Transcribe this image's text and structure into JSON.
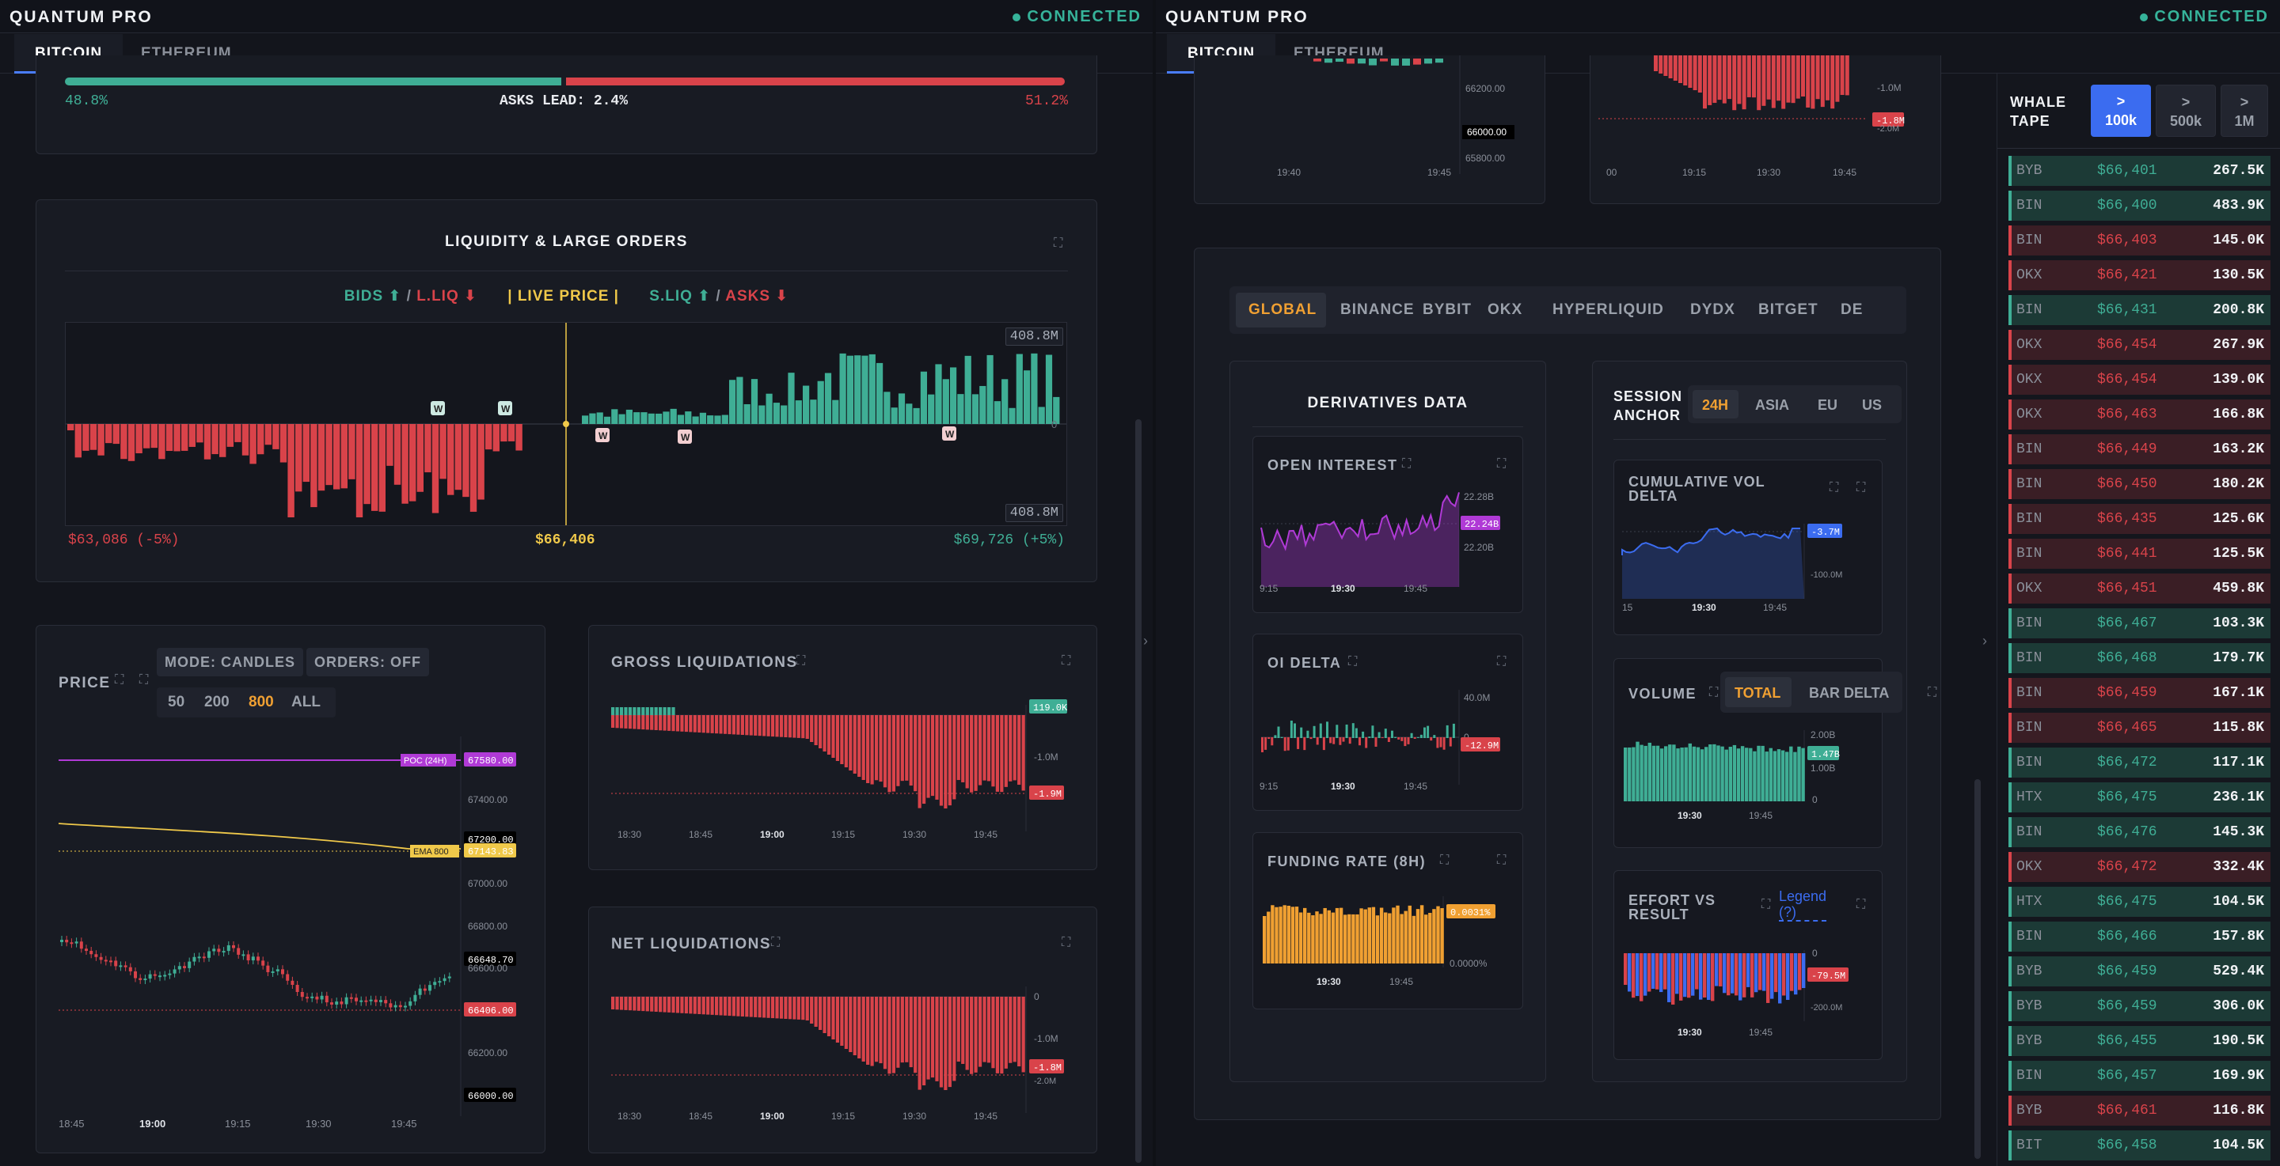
{
  "left": {
    "brand": "QUANTUM PRO",
    "status": "CONNECTED",
    "tabs": [
      "BITCOIN",
      "ETHEREUM"
    ],
    "orderbook": {
      "bids_pct": "48.8%",
      "asks_pct": "51.2%",
      "lead": "ASKS LEAD: 2.4%"
    },
    "liquidity": {
      "title": "LIQUIDITY & LARGE ORDERS",
      "legend_bids": "BIDS ⬆",
      "legend_sep1": "/",
      "legend_lliq": "L.LIQ ⬇",
      "legend_live": "| LIVE PRICE |",
      "legend_sliq": "S.LIQ ⬆",
      "legend_sep2": "/",
      "legend_asks": "ASKS ⬇",
      "max_top": "408.8M",
      "max_bottom": "408.8M",
      "zero": "0",
      "whale_mark": "W",
      "low": "$63,086 (-5%)",
      "mid": "$66,406",
      "high": "$69,726 (+5%)"
    },
    "price": {
      "title": "PRICE",
      "mode": "MODE: CANDLES",
      "orders": "ORDERS: OFF",
      "lookbacks": [
        "50",
        "200",
        "800",
        "ALL"
      ],
      "active_lookback": "800",
      "poc_label": "POC (24H)",
      "poc_value": "67580.00",
      "ema_label": "EMA 800",
      "ema_value": "67143.83",
      "y_ticks": [
        "67400.00",
        "67200.00",
        "67000.00",
        "66800.00",
        "66648.70",
        "66600.00",
        "66406.00",
        "66200.00",
        "66000.00"
      ],
      "x_ticks": [
        "18:45",
        "19:00",
        "19:15",
        "19:30",
        "19:45"
      ]
    },
    "gross": {
      "title": "GROSS LIQUIDATIONS",
      "top_tag": "119.0K",
      "mid_tick": "-1.0M",
      "bottom_tag": "-1.9M",
      "x_ticks": [
        "18:30",
        "18:45",
        "19:00",
        "19:15",
        "19:30",
        "19:45"
      ]
    },
    "net": {
      "title": "NET LIQUIDATIONS",
      "zero": "0",
      "mid_tick": "-1.0M",
      "bottom_tag": "-1.8M",
      "extra_tick": "-2.0M",
      "x_ticks": [
        "18:30",
        "18:45",
        "19:00",
        "19:15",
        "19:30",
        "19:45"
      ]
    }
  },
  "right": {
    "brand": "QUANTUM PRO",
    "status": "CONNECTED",
    "tabs": [
      "BITCOIN",
      "ETHEREUM"
    ],
    "top_left_ticks": [
      "66200.00",
      "66000.00",
      "65800.00"
    ],
    "top_left_x": [
      "19:40",
      "19:45"
    ],
    "top_right_ticks": [
      "-1.0M",
      "-1.8M",
      "-2.0M"
    ],
    "top_right_x": [
      "00",
      "19:15",
      "19:30",
      "19:45"
    ],
    "exchanges": [
      "GLOBAL",
      "BINANCE",
      "BYBIT",
      "OKX",
      "HYPERLIQUID",
      "DYDX",
      "BITGET",
      "DE"
    ],
    "derivatives": {
      "title": "DERIVATIVES DATA",
      "oi": {
        "title": "OPEN INTEREST",
        "ticks": [
          "22.28B",
          "22.24B",
          "22.20B"
        ],
        "x": [
          "9:15",
          "19:30",
          "19:45"
        ]
      },
      "oi_delta": {
        "title": "OI DELTA",
        "ticks": [
          "40.0M",
          "0",
          "-12.9M"
        ],
        "x": [
          "9:15",
          "19:30",
          "19:45"
        ]
      },
      "funding": {
        "title": "FUNDING RATE (8H)",
        "ticks": [
          "0.0031%",
          "0.0000%"
        ],
        "x": [
          "19:30",
          "19:45"
        ]
      }
    },
    "session": {
      "title_line1": "SESSION",
      "title_line2": "ANCHOR",
      "options": [
        "24H",
        "ASIA",
        "EU",
        "US"
      ],
      "cvd": {
        "title_line1": "CUMULATIVE VOL",
        "title_line2": "DELTA",
        "ticks": [
          "-3.7M",
          "-100.0M"
        ],
        "x": [
          "15",
          "19:30",
          "19:45"
        ]
      },
      "volume": {
        "title": "VOLUME",
        "modes": [
          "TOTAL",
          "BAR DELTA"
        ],
        "ticks": [
          "2.00B",
          "1.47B",
          "1.00B",
          "0"
        ],
        "x": [
          "19:30",
          "19:45"
        ]
      },
      "effort": {
        "title_line1": "EFFORT VS",
        "title_line2": "RESULT",
        "legend": "Legend",
        "legend_q": "(?)",
        "ticks": [
          "0",
          "-79.5M",
          "-200.0M"
        ],
        "x": [
          "19:30",
          "19:45"
        ]
      }
    },
    "whale": {
      "title_line1": "WHALE",
      "title_line2": "TAPE",
      "filters": [
        ">\n100k",
        ">\n500k",
        ">\n1M"
      ],
      "filter_top": [
        ">",
        ">",
        ">"
      ],
      "filter_bottom": [
        "100k",
        "500k",
        "1M"
      ],
      "rows": [
        {
          "ex": "BYB",
          "price": "$66,401",
          "size": "267.5K",
          "side": "buy"
        },
        {
          "ex": "BIN",
          "price": "$66,400",
          "size": "483.9K",
          "side": "buy"
        },
        {
          "ex": "BIN",
          "price": "$66,403",
          "size": "145.0K",
          "side": "sell"
        },
        {
          "ex": "OKX",
          "price": "$66,421",
          "size": "130.5K",
          "side": "sell"
        },
        {
          "ex": "BIN",
          "price": "$66,431",
          "size": "200.8K",
          "side": "buy"
        },
        {
          "ex": "OKX",
          "price": "$66,454",
          "size": "267.9K",
          "side": "sell"
        },
        {
          "ex": "OKX",
          "price": "$66,454",
          "size": "139.0K",
          "side": "sell"
        },
        {
          "ex": "OKX",
          "price": "$66,463",
          "size": "166.8K",
          "side": "sell"
        },
        {
          "ex": "BIN",
          "price": "$66,449",
          "size": "163.2K",
          "side": "sell"
        },
        {
          "ex": "BIN",
          "price": "$66,450",
          "size": "180.2K",
          "side": "sell"
        },
        {
          "ex": "BIN",
          "price": "$66,435",
          "size": "125.6K",
          "side": "sell"
        },
        {
          "ex": "BIN",
          "price": "$66,441",
          "size": "125.5K",
          "side": "sell"
        },
        {
          "ex": "OKX",
          "price": "$66,451",
          "size": "459.8K",
          "side": "sell"
        },
        {
          "ex": "BIN",
          "price": "$66,467",
          "size": "103.3K",
          "side": "buy"
        },
        {
          "ex": "BIN",
          "price": "$66,468",
          "size": "179.7K",
          "side": "buy"
        },
        {
          "ex": "BIN",
          "price": "$66,459",
          "size": "167.1K",
          "side": "sell"
        },
        {
          "ex": "BIN",
          "price": "$66,465",
          "size": "115.8K",
          "side": "sell"
        },
        {
          "ex": "BIN",
          "price": "$66,472",
          "size": "117.1K",
          "side": "buy"
        },
        {
          "ex": "HTX",
          "price": "$66,475",
          "size": "236.1K",
          "side": "buy"
        },
        {
          "ex": "BIN",
          "price": "$66,476",
          "size": "145.3K",
          "side": "buy"
        },
        {
          "ex": "OKX",
          "price": "$66,472",
          "size": "332.4K",
          "side": "sell"
        },
        {
          "ex": "HTX",
          "price": "$66,475",
          "size": "104.5K",
          "side": "buy"
        },
        {
          "ex": "BIN",
          "price": "$66,466",
          "size": "157.8K",
          "side": "buy"
        },
        {
          "ex": "BYB",
          "price": "$66,459",
          "size": "529.4K",
          "side": "buy"
        },
        {
          "ex": "BYB",
          "price": "$66,459",
          "size": "306.0K",
          "side": "buy"
        },
        {
          "ex": "BYB",
          "price": "$66,455",
          "size": "190.5K",
          "side": "buy"
        },
        {
          "ex": "BIN",
          "price": "$66,457",
          "size": "169.9K",
          "side": "buy"
        },
        {
          "ex": "BYB",
          "price": "$66,461",
          "size": "116.8K",
          "side": "sell"
        },
        {
          "ex": "BIT",
          "price": "$66,458",
          "size": "104.5K",
          "side": "buy"
        }
      ]
    }
  },
  "colors": {
    "green": "#3fae95",
    "red": "#d9434a",
    "yellow": "#f0c94a",
    "purple": "#b03ad6",
    "blue": "#3b6cf0",
    "orange": "#f0a032",
    "accent": "#4a7dff"
  }
}
